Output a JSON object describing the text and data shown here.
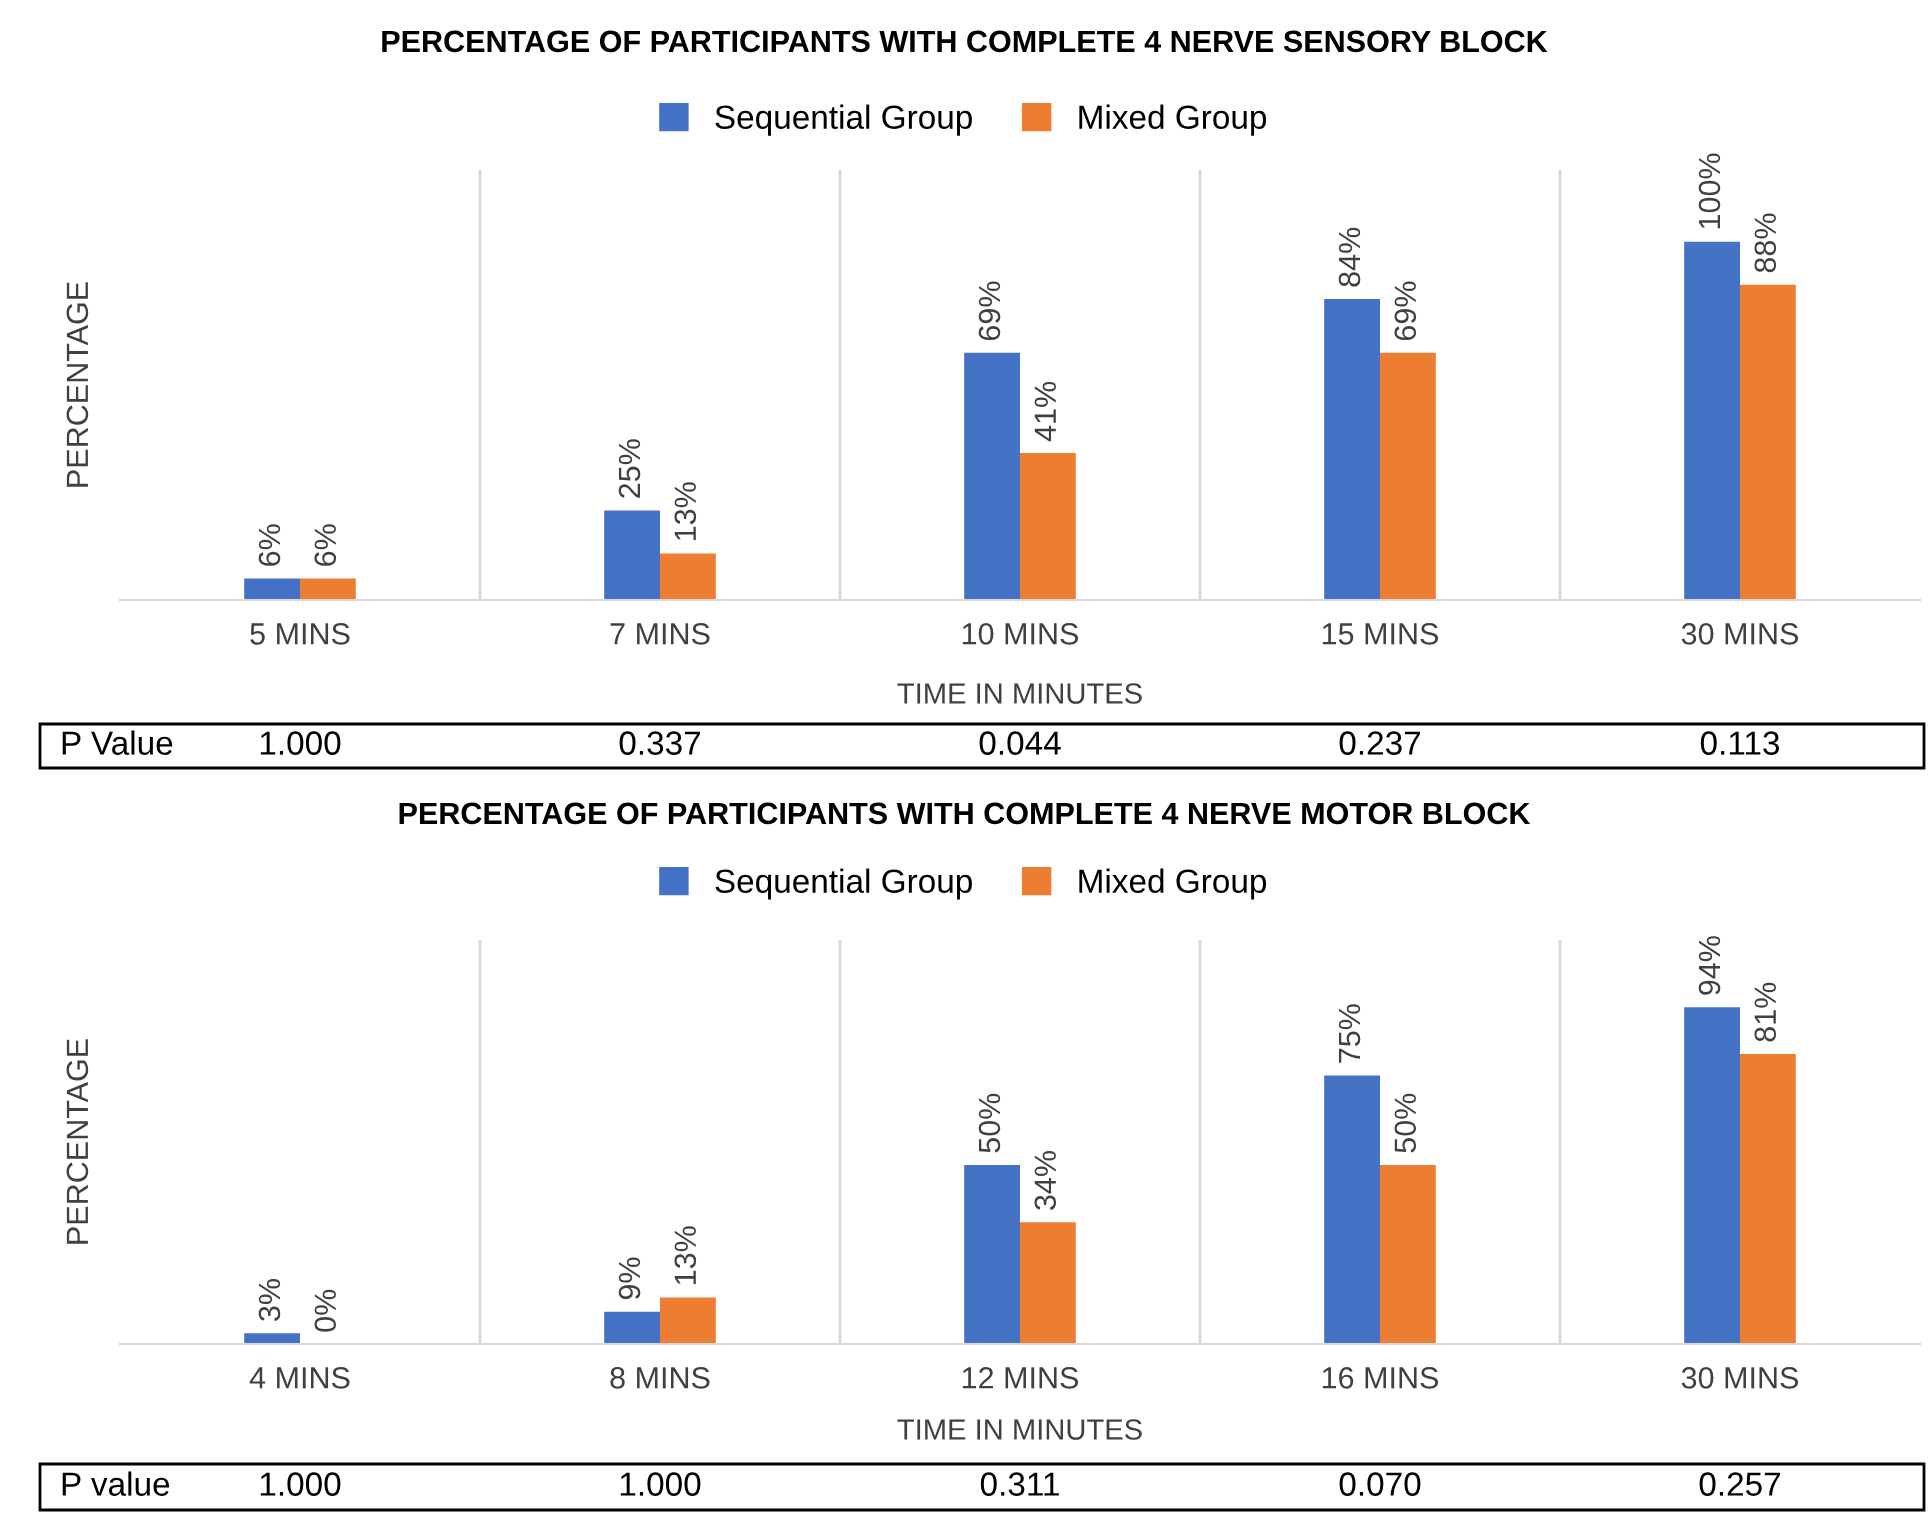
{
  "chart_data": [
    {
      "type": "bar",
      "title": "PERCENTAGE OF PARTICIPANTS WITH COMPLETE 4 NERVE SENSORY BLOCK",
      "xlabel": "TIME IN MINUTES",
      "ylabel": "PERCENTAGE",
      "categories": [
        "5 MINS",
        "7 MINS",
        "10 MINS",
        "15 MINS",
        "30 MINS"
      ],
      "series": [
        {
          "name": "Sequential Group",
          "color": "#4472c4",
          "values": [
            6,
            25,
            69,
            84,
            100
          ],
          "value_labels": [
            "6%",
            "25%",
            "69%",
            "84%",
            "100%"
          ]
        },
        {
          "name": "Mixed Group",
          "color": "#ed7d31",
          "values": [
            6,
            13,
            41,
            69,
            88
          ],
          "value_labels": [
            "6%",
            "13%",
            "41%",
            "69%",
            "88%"
          ]
        }
      ],
      "annotations": [
        "P Value",
        "1.000",
        "0.337",
        "0.044",
        "0.237",
        "0.113"
      ],
      "grid": "x",
      "legend": "top",
      "tick_labels": "x"
    },
    {
      "type": "bar",
      "title": "PERCENTAGE OF PARTICIPANTS WITH COMPLETE 4 NERVE MOTOR BLOCK",
      "xlabel": "TIME IN MINUTES",
      "ylabel": "PERCENTAGE",
      "categories": [
        "4 MINS",
        "8 MINS",
        "12 MINS",
        "16 MINS",
        "30 MINS"
      ],
      "series": [
        {
          "name": "Sequential Group",
          "color": "#4472c4",
          "values": [
            3,
            9,
            50,
            75,
            94
          ],
          "value_labels": [
            "3%",
            "9%",
            "50%",
            "75%",
            "94%"
          ]
        },
        {
          "name": "Mixed Group",
          "color": "#ed7d31",
          "values": [
            0,
            13,
            34,
            50,
            81
          ],
          "value_labels": [
            "0%",
            "13%",
            "34%",
            "50%",
            "81%"
          ]
        }
      ],
      "annotations": [
        "P value",
        "1.000",
        "1.000",
        "0.311",
        "0.070",
        "0.257"
      ],
      "grid": "x",
      "legend": "top",
      "tick_labels": "x"
    }
  ]
}
